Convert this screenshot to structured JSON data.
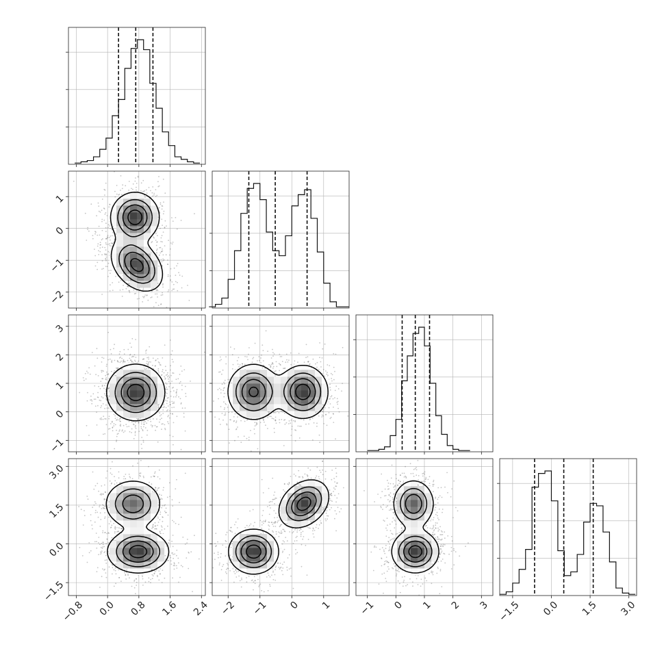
{
  "chart_data": {
    "type": "corner",
    "parameters": 4,
    "grid": true,
    "series_color": "#111111",
    "density_colormap": [
      "#ffffff",
      "#000000"
    ],
    "tick_labels": [
      [
        "−0.8",
        "0.0",
        "0.8",
        "1.6",
        "2.4"
      ],
      [
        "−2",
        "−1",
        "0",
        "1"
      ],
      [
        "−1",
        "0",
        "1",
        "2",
        "3"
      ],
      [
        "−1.5",
        "0.0",
        "1.5",
        "3.0"
      ]
    ],
    "ranges": [
      [
        -1.0,
        2.5
      ],
      [
        -2.5,
        1.8
      ],
      [
        -1.4,
        3.4
      ],
      [
        -2.0,
        3.3
      ]
    ],
    "marginals": [
      {
        "quantiles": [
          0.28,
          0.72,
          1.16
        ],
        "bin_edges": [
          -0.84,
          -0.68,
          -0.52,
          -0.36,
          -0.2,
          -0.04,
          0.12,
          0.28,
          0.44,
          0.6,
          0.76,
          0.92,
          1.08,
          1.24,
          1.4,
          1.56,
          1.72,
          1.88,
          2.04,
          2.2,
          2.36
        ],
        "heights": [
          1,
          2,
          3,
          6,
          12,
          21,
          39,
          52,
          77,
          93,
          100,
          92,
          65,
          45,
          26,
          15,
          6,
          4,
          2,
          1
        ]
      },
      {
        "quantiles": [
          -1.35,
          -0.52,
          0.48
        ],
        "bin_edges": [
          -2.6,
          -2.4,
          -2.2,
          -2.0,
          -1.8,
          -1.6,
          -1.4,
          -1.2,
          -1.0,
          -0.8,
          -0.6,
          -0.4,
          -0.2,
          0.0,
          0.2,
          0.4,
          0.6,
          0.8,
          1.0,
          1.2,
          1.4,
          1.6,
          1.8
        ],
        "heights": [
          1,
          3,
          8,
          23,
          46,
          76,
          96,
          100,
          87,
          61,
          46,
          42,
          58,
          82,
          91,
          95,
          72,
          45,
          20,
          5,
          1,
          1
        ]
      },
      {
        "quantiles": [
          0.22,
          0.68,
          1.18
        ],
        "bin_edges": [
          -1.0,
          -0.8,
          -0.6,
          -0.4,
          -0.2,
          0.0,
          0.2,
          0.4,
          0.6,
          0.8,
          1.0,
          1.2,
          1.4,
          1.6,
          1.8,
          2.0,
          2.2,
          2.4,
          2.6
        ],
        "heights": [
          1,
          1,
          2,
          4,
          13,
          26,
          57,
          77,
          95,
          100,
          85,
          55,
          29,
          14,
          5,
          2,
          1,
          1
        ]
      },
      {
        "quantiles": [
          -0.65,
          0.48,
          1.62
        ],
        "bin_edges": [
          -2.0,
          -1.75,
          -1.5,
          -1.25,
          -1.0,
          -0.75,
          -0.5,
          -0.25,
          0.0,
          0.25,
          0.5,
          0.75,
          1.0,
          1.25,
          1.5,
          1.75,
          2.0,
          2.25,
          2.5,
          2.75,
          3.0,
          3.25
        ],
        "heights": [
          1,
          3,
          10,
          21,
          37,
          87,
          98,
          100,
          76,
          36,
          16,
          19,
          33,
          59,
          74,
          72,
          51,
          27,
          6,
          2,
          1
        ]
      }
    ],
    "joints": [
      {
        "row": 1,
        "col": 0,
        "modes": [
          {
            "x": 0.7,
            "y": 0.35,
            "sx": 0.3,
            "sy": 0.38,
            "w": 0.5
          },
          {
            "x": 0.75,
            "y": -1.15,
            "sx": 0.32,
            "sy": 0.4,
            "w": 0.5,
            "rho": -0.35
          }
        ]
      },
      {
        "row": 2,
        "col": 0,
        "modes": [
          {
            "x": 0.72,
            "y": 0.68,
            "sx": 0.36,
            "sy": 0.48,
            "w": 1.0
          }
        ]
      },
      {
        "row": 2,
        "col": 1,
        "modes": [
          {
            "x": -1.2,
            "y": 0.7,
            "sx": 0.4,
            "sy": 0.48,
            "w": 0.5
          },
          {
            "x": 0.35,
            "y": 0.7,
            "sx": 0.38,
            "sy": 0.45,
            "w": 0.5
          }
        ]
      },
      {
        "row": 3,
        "col": 0,
        "modes": [
          {
            "x": 0.65,
            "y": 1.55,
            "sx": 0.35,
            "sy": 0.45,
            "w": 0.45
          },
          {
            "x": 0.78,
            "y": -0.3,
            "sx": 0.38,
            "sy": 0.4,
            "w": 0.55
          }
        ]
      },
      {
        "row": 3,
        "col": 1,
        "modes": [
          {
            "x": -1.2,
            "y": -0.3,
            "sx": 0.38,
            "sy": 0.42,
            "w": 0.5
          },
          {
            "x": 0.38,
            "y": 1.55,
            "sx": 0.38,
            "sy": 0.45,
            "w": 0.5,
            "rho": 0.3
          }
        ]
      },
      {
        "row": 3,
        "col": 2,
        "modes": [
          {
            "x": 0.62,
            "y": 1.55,
            "sx": 0.35,
            "sy": 0.45,
            "w": 0.45
          },
          {
            "x": 0.68,
            "y": -0.3,
            "sx": 0.4,
            "sy": 0.4,
            "w": 0.55
          }
        ]
      }
    ]
  }
}
